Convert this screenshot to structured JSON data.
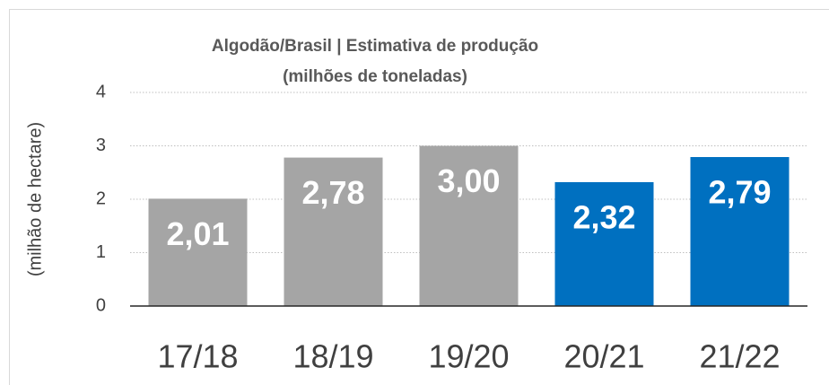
{
  "chart_data": {
    "type": "bar",
    "title": "Algodão/Brasil | Estimativa de produção",
    "subtitle": "(milhões de toneladas)",
    "y_label": "(milhão de hectare)",
    "categories": [
      "17/18",
      "18/19",
      "19/20",
      "20/21",
      "21/22"
    ],
    "values": [
      2.01,
      2.78,
      3.0,
      2.32,
      2.79
    ],
    "value_labels": [
      "2,01",
      "2,78",
      "3,00",
      "2,32",
      "2,79"
    ],
    "colors": [
      "#a5a5a5",
      "#a5a5a5",
      "#a5a5a5",
      "#0070c0",
      "#0070c0"
    ],
    "ylim": [
      0,
      4
    ],
    "yticks": [
      0,
      1,
      2,
      3,
      4
    ],
    "grid": true
  }
}
